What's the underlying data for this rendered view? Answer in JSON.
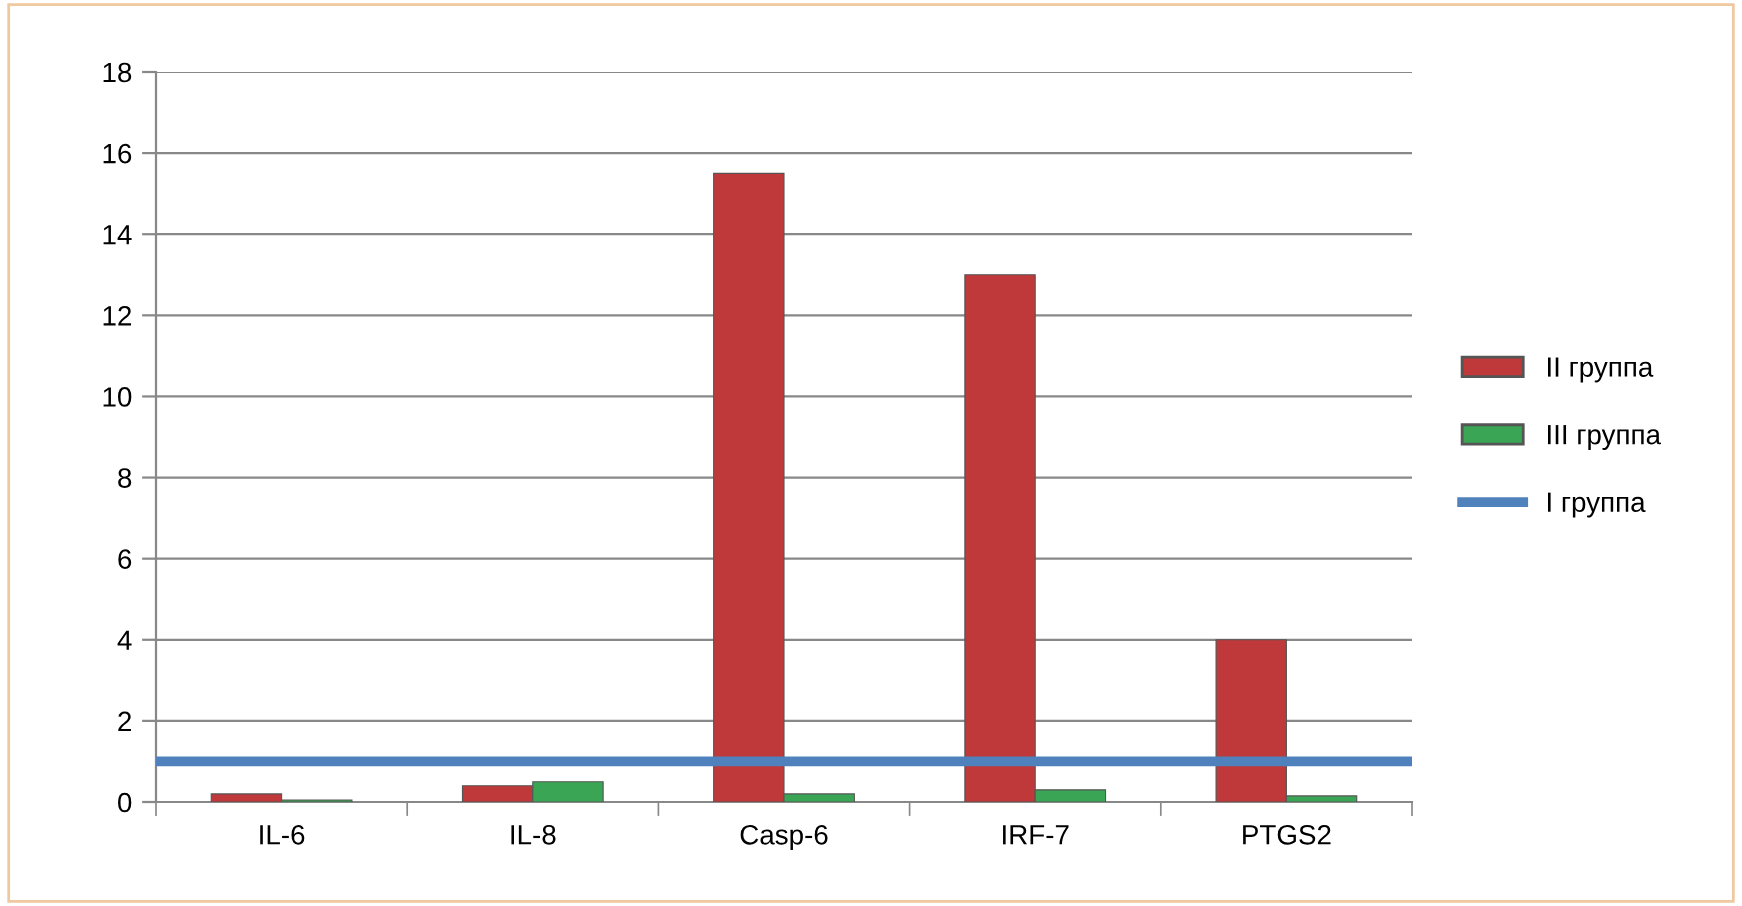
{
  "chart_data": {
    "type": "bar",
    "categories": [
      "IL-6",
      "IL-8",
      "Casp-6",
      "IRF-7",
      "PTGS2"
    ],
    "series": [
      {
        "name": "II группа",
        "color": "#c0393a",
        "values": [
          0.2,
          0.4,
          15.5,
          13.0,
          4.0
        ]
      },
      {
        "name": "III группа",
        "color": "#3aa655",
        "values": [
          0.05,
          0.5,
          0.2,
          0.3,
          0.15
        ]
      }
    ],
    "ref_lines": [
      {
        "axis": "y",
        "value": 1,
        "label": "I группа",
        "color": "#4f81bd",
        "line_style": "solid"
      }
    ],
    "ylim": [
      0,
      18
    ],
    "yticks": [
      0,
      2,
      4,
      6,
      8,
      10,
      12,
      14,
      16,
      18
    ],
    "grid": "y",
    "legend": "right"
  }
}
